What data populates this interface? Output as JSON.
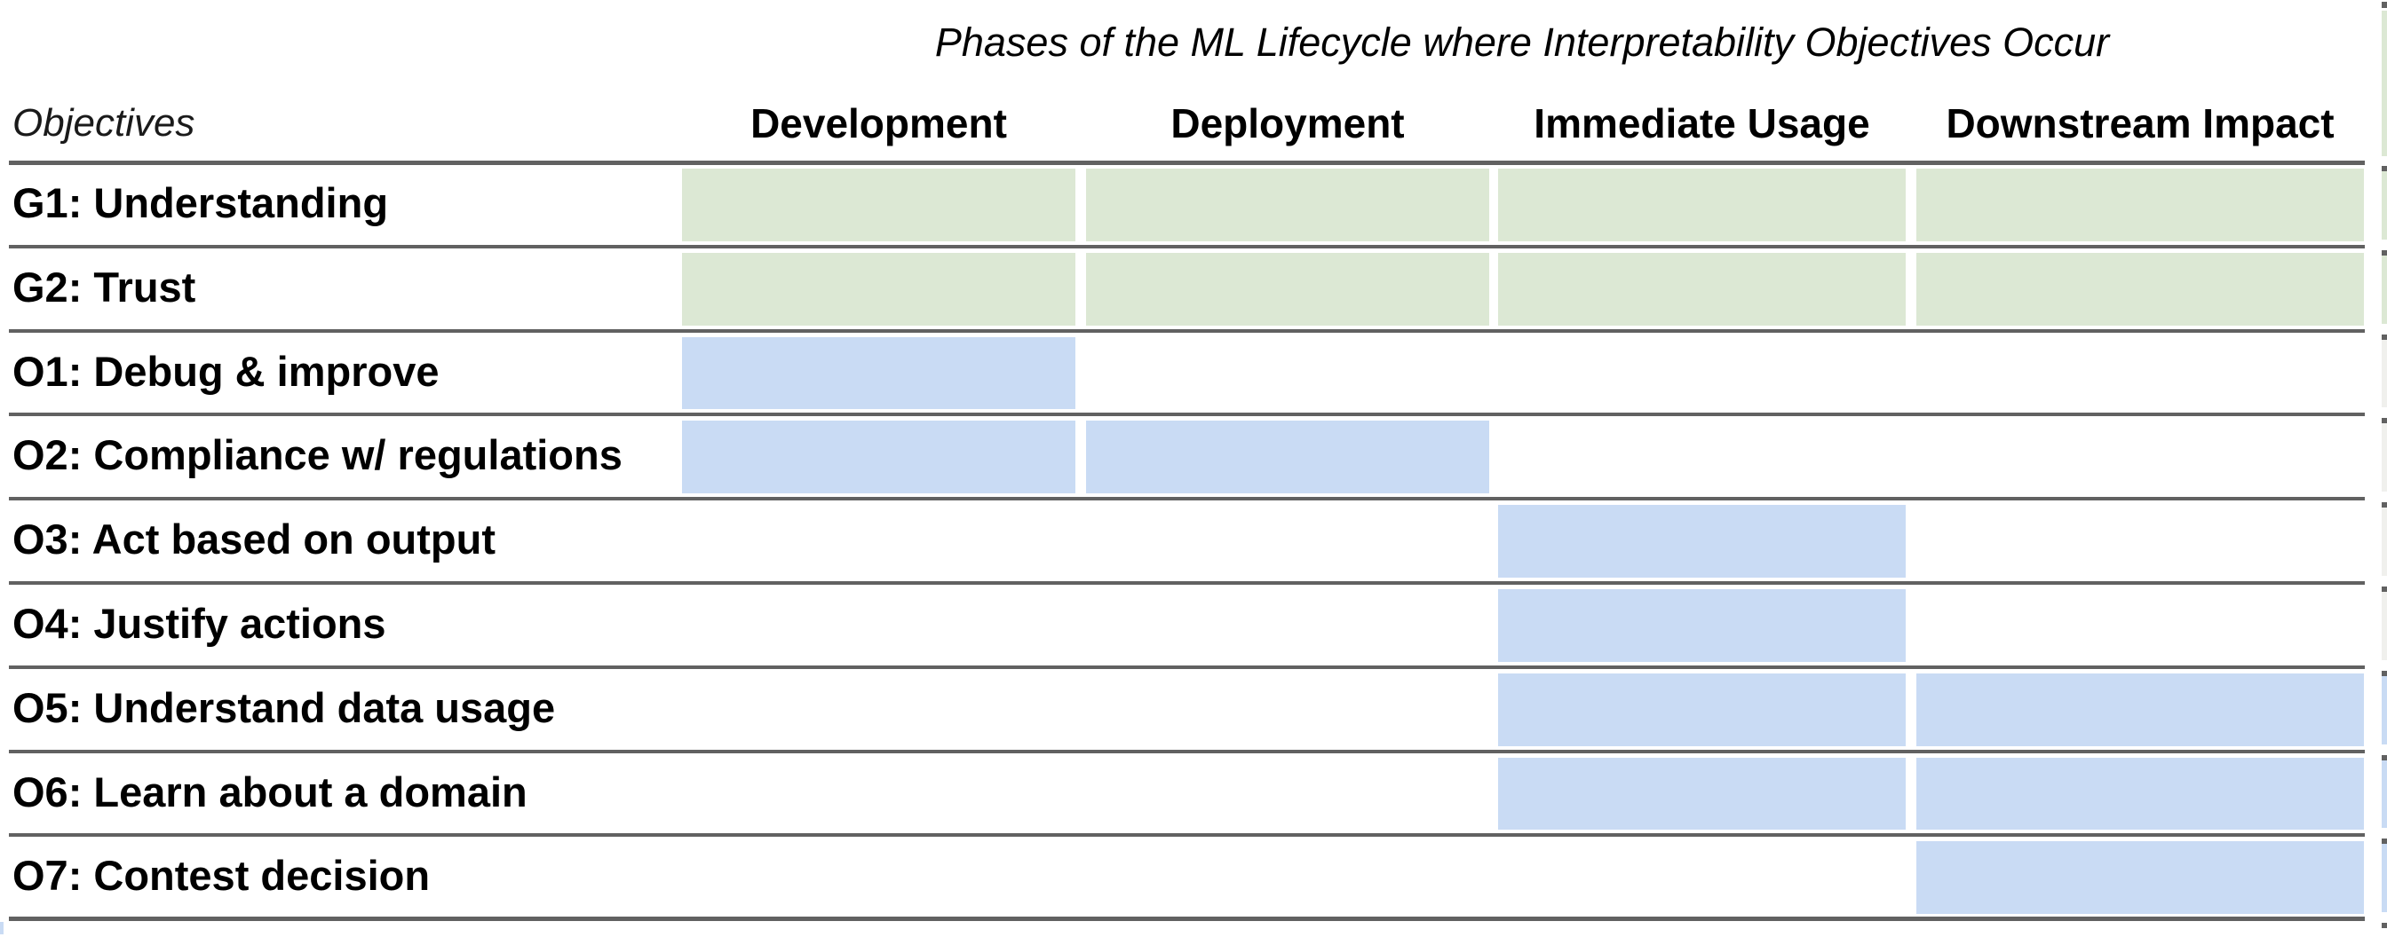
{
  "title": "Phases of the ML Lifecycle where Interpretability Objectives Occur",
  "corner_label": "Objectives",
  "columns": [
    {
      "label": "Development"
    },
    {
      "label": "Deployment"
    },
    {
      "label": "Immediate Usage"
    },
    {
      "label": "Downstream Impact"
    }
  ],
  "rows": [
    {
      "id": "G1",
      "label": "G1: Understanding",
      "group": "goal",
      "phases": [
        1,
        1,
        1,
        1
      ]
    },
    {
      "id": "G2",
      "label": "G2: Trust",
      "group": "goal",
      "phases": [
        1,
        1,
        1,
        1
      ]
    },
    {
      "id": "O1",
      "label": "O1: Debug & improve",
      "group": "objective",
      "phases": [
        1,
        0,
        0,
        0
      ]
    },
    {
      "id": "O2",
      "label": "O2: Compliance w/ regulations",
      "group": "objective",
      "phases": [
        1,
        1,
        0,
        0
      ]
    },
    {
      "id": "O3",
      "label": "O3: Act based on output",
      "group": "objective",
      "phases": [
        0,
        0,
        1,
        0
      ]
    },
    {
      "id": "O4",
      "label": "O4: Justify actions",
      "group": "objective",
      "phases": [
        0,
        0,
        1,
        0
      ]
    },
    {
      "id": "O5",
      "label": "O5: Understand data usage",
      "group": "objective",
      "phases": [
        0,
        0,
        1,
        1
      ]
    },
    {
      "id": "O6",
      "label": "O6: Learn about a domain",
      "group": "objective",
      "phases": [
        0,
        0,
        1,
        1
      ]
    },
    {
      "id": "O7",
      "label": "O7: Contest decision",
      "group": "objective",
      "phases": [
        0,
        0,
        0,
        1
      ]
    }
  ],
  "colors": {
    "goal_fill": "#dce8d4",
    "objective_fill": "#c9dbf4",
    "separator": "#616161",
    "edge_pale": "#f0f0ed",
    "background": "#ffffff",
    "text": "#000000"
  },
  "edge_strip": {
    "description": "thin cut-off column sliver visible at far right edge",
    "segment_colors": [
      "#dce8d4",
      "#dce8d4",
      "#dce8d4",
      "#f0f0ed",
      "#f0f0ed",
      "#f0f0ed",
      "#f0f0ed",
      "#c9dbf4",
      "#c9dbf4",
      "#c9dbf4"
    ]
  },
  "corner_patch_color": "#c9dbf4",
  "chart_data": {
    "type": "heatmap",
    "title": "Phases of the ML Lifecycle where Interpretability Objectives Occur",
    "x_categories": [
      "Development",
      "Deployment",
      "Immediate Usage",
      "Downstream Impact"
    ],
    "y_categories": [
      "G1: Understanding",
      "G2: Trust",
      "O1: Debug & improve",
      "O2: Compliance w/ regulations",
      "O3: Act based on output",
      "O4: Justify actions",
      "O5: Understand data usage",
      "O6: Learn about a domain",
      "O7: Contest decision"
    ],
    "matrix": [
      [
        1,
        1,
        1,
        1
      ],
      [
        1,
        1,
        1,
        1
      ],
      [
        1,
        0,
        0,
        0
      ],
      [
        1,
        1,
        0,
        0
      ],
      [
        0,
        0,
        1,
        0
      ],
      [
        0,
        0,
        1,
        0
      ],
      [
        0,
        0,
        1,
        1
      ],
      [
        0,
        0,
        1,
        1
      ],
      [
        0,
        0,
        0,
        1
      ]
    ],
    "row_types": [
      "goal",
      "goal",
      "objective",
      "objective",
      "objective",
      "objective",
      "objective",
      "objective",
      "objective"
    ],
    "value_meaning": "1 = objective occurs in this lifecycle phase (filled cell), 0 = not applicable (blank)",
    "cell_colors": {
      "goal": "#dce8d4",
      "objective": "#c9dbf4"
    },
    "corner_axis_label": "Objectives",
    "legend_position": "none",
    "grid": "horizontal-rules-only"
  }
}
